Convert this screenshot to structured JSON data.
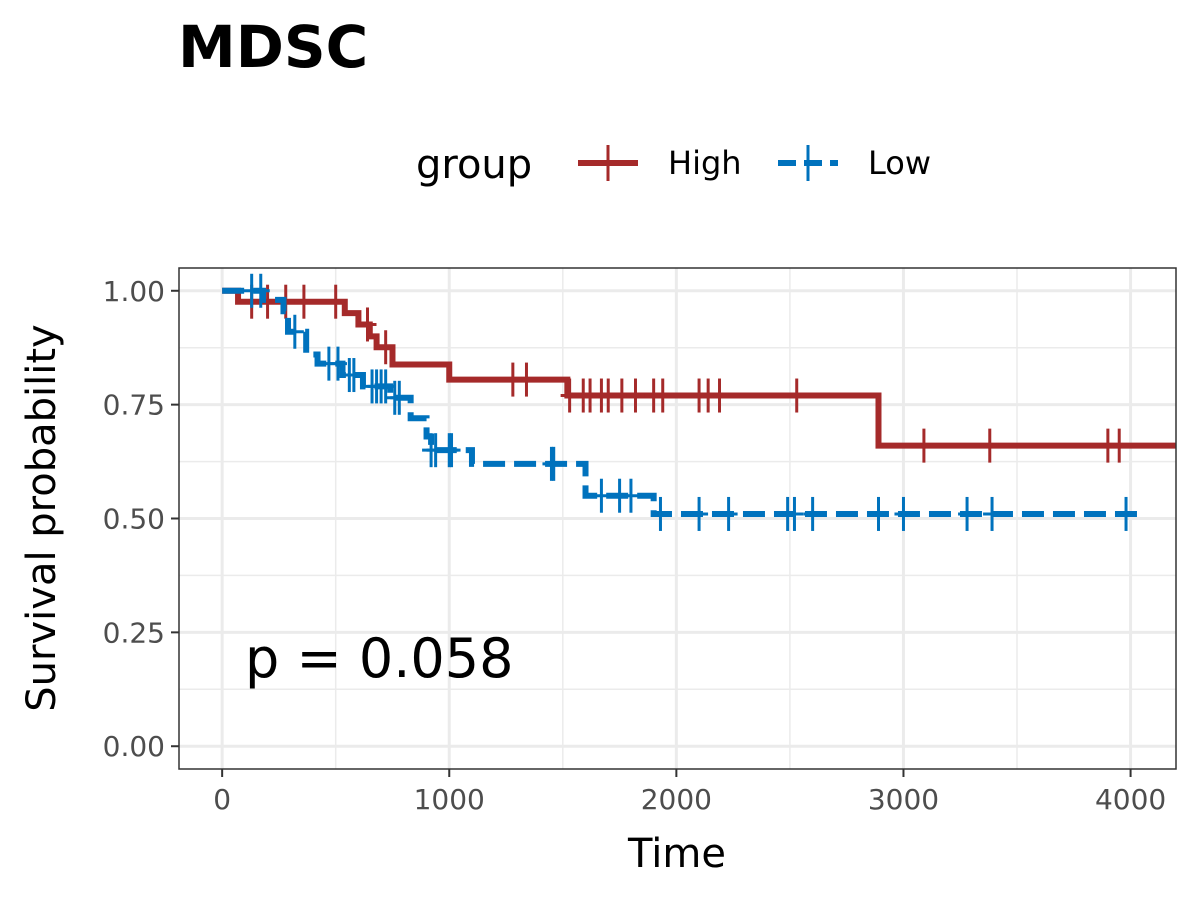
{
  "chart_data": {
    "type": "line",
    "subtype": "kaplan-meier",
    "title": "MDSC",
    "xlabel": "Time",
    "ylabel": "Survival probability",
    "xlim": [
      -190,
      4200
    ],
    "ylim": [
      -0.05,
      1.05
    ],
    "x_ticks": [
      0,
      1000,
      2000,
      3000,
      4000
    ],
    "x_tick_labels": [
      "0",
      "1000",
      "2000",
      "3000",
      "4000"
    ],
    "y_ticks": [
      0,
      0.25,
      0.5,
      0.75,
      1.0
    ],
    "y_tick_labels": [
      "0.00",
      "0.25",
      "0.50",
      "0.75",
      "1.00"
    ],
    "grid": true,
    "legend": {
      "title": "group",
      "position": "top"
    },
    "annotation": {
      "text": "p = 0.058",
      "x": 100,
      "y": 0.16
    },
    "series": [
      {
        "name": "High",
        "color": "#a52a2a",
        "dash": "solid",
        "steps": [
          [
            0,
            1.0
          ],
          [
            70,
            0.976
          ],
          [
            540,
            0.951
          ],
          [
            600,
            0.926
          ],
          [
            650,
            0.9
          ],
          [
            680,
            0.876
          ],
          [
            750,
            0.838
          ],
          [
            1000,
            0.805
          ],
          [
            1520,
            0.77
          ],
          [
            2890,
            0.66
          ],
          [
            4200,
            0.66
          ]
        ],
        "censor_x": [
          130,
          200,
          280,
          360,
          500,
          640,
          720,
          1280,
          1340,
          1530,
          1590,
          1620,
          1670,
          1700,
          1760,
          1820,
          1900,
          1940,
          2100,
          2140,
          2190,
          2530,
          3090,
          3380,
          3900,
          3950
        ]
      },
      {
        "name": "Low",
        "color": "#0072bd",
        "dash": "dashed",
        "steps": [
          [
            0,
            1.0
          ],
          [
            180,
            0.98
          ],
          [
            270,
            0.955
          ],
          [
            290,
            0.91
          ],
          [
            370,
            0.86
          ],
          [
            420,
            0.84
          ],
          [
            530,
            0.815
          ],
          [
            620,
            0.79
          ],
          [
            740,
            0.765
          ],
          [
            830,
            0.72
          ],
          [
            900,
            0.68
          ],
          [
            920,
            0.65
          ],
          [
            1100,
            0.62
          ],
          [
            1600,
            0.55
          ],
          [
            1900,
            0.51
          ],
          [
            4050,
            0.51
          ]
        ],
        "censor_x": [
          130,
          170,
          320,
          470,
          510,
          560,
          580,
          660,
          680,
          700,
          720,
          760,
          780,
          920,
          940,
          1000,
          1010,
          1450,
          1460,
          1670,
          1750,
          1800,
          1930,
          2100,
          2230,
          2490,
          2520,
          2600,
          2890,
          3000,
          3280,
          3390,
          3980
        ]
      }
    ]
  }
}
